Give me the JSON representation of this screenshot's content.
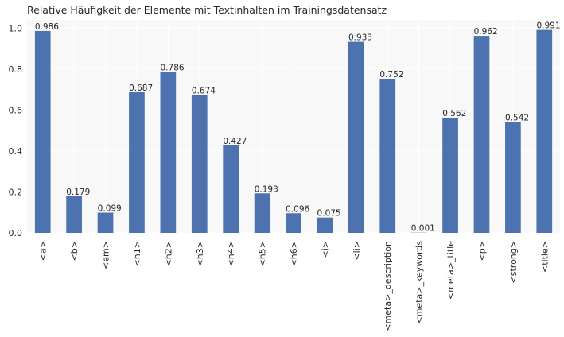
{
  "chart_data": {
    "type": "bar",
    "title": "Relative Häufigkeit der Elemente mit Textinhalten im Trainingsdatensatz",
    "xlabel": "",
    "ylabel": "",
    "categories": [
      "<a>",
      "<b>",
      "<em>",
      "<h1>",
      "<h2>",
      "<h3>",
      "<h4>",
      "<h5>",
      "<h6>",
      "<i>",
      "<li>",
      "<meta>_description",
      "<meta>_keywords",
      "<meta>_title",
      "<p>",
      "<strong>",
      "<title>"
    ],
    "values": [
      0.986,
      0.179,
      0.099,
      0.687,
      0.786,
      0.674,
      0.427,
      0.193,
      0.096,
      0.075,
      0.933,
      0.752,
      0.001,
      0.562,
      0.962,
      0.542,
      0.991
    ],
    "value_labels": [
      "0.986",
      "0.179",
      "0.099",
      "0.687",
      "0.786",
      "0.674",
      "0.427",
      "0.193",
      "0.096",
      "0.075",
      "0.933",
      "0.752",
      "0.001",
      "0.562",
      "0.962",
      "0.542",
      "0.991"
    ],
    "yticks": [
      0.0,
      0.2,
      0.4,
      0.6,
      0.8,
      1.0
    ],
    "ytick_labels": [
      "0.0",
      "0.2",
      "0.4",
      "0.6",
      "0.8",
      "1.0"
    ],
    "ylim": [
      0,
      1.04
    ],
    "grid": true,
    "legend": "none",
    "colors": {
      "bar": "#4c72b0",
      "plot_background": "#f8f8f8",
      "grid": "#ffffff",
      "text": "#262626"
    }
  }
}
